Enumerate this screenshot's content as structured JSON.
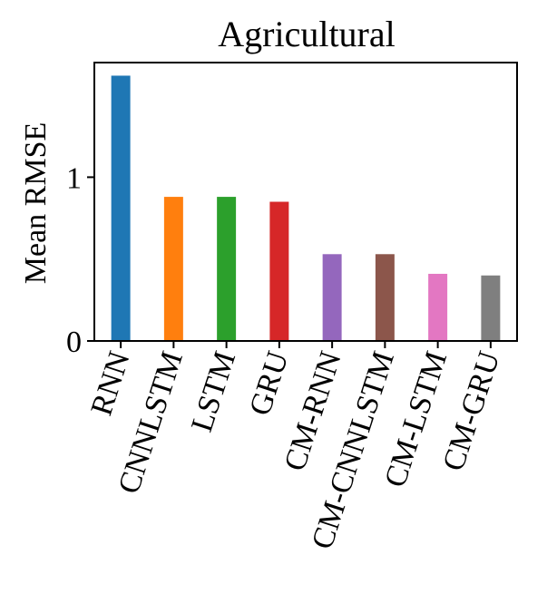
{
  "chart_data": {
    "type": "bar",
    "title": "Agricultural",
    "xlabel": "",
    "ylabel": "Mean RMSE",
    "categories": [
      "RNN",
      "CNNLSTM",
      "LSTM",
      "GRU",
      "CM-RNN",
      "CM-CNNLSTM",
      "CM-LSTM",
      "CM-GRU"
    ],
    "values": [
      1.62,
      0.88,
      0.88,
      0.85,
      0.53,
      0.53,
      0.41,
      0.4
    ],
    "colors": [
      "#1f77b4",
      "#ff7f0e",
      "#2ca02c",
      "#d62728",
      "#9467bd",
      "#8c564b",
      "#e377c2",
      "#7f7f7f"
    ],
    "ylim": [
      0,
      1.7
    ],
    "yticks": [
      0,
      1
    ],
    "ytick_labels": [
      "0",
      "1"
    ],
    "grid": false,
    "legend": "none"
  }
}
